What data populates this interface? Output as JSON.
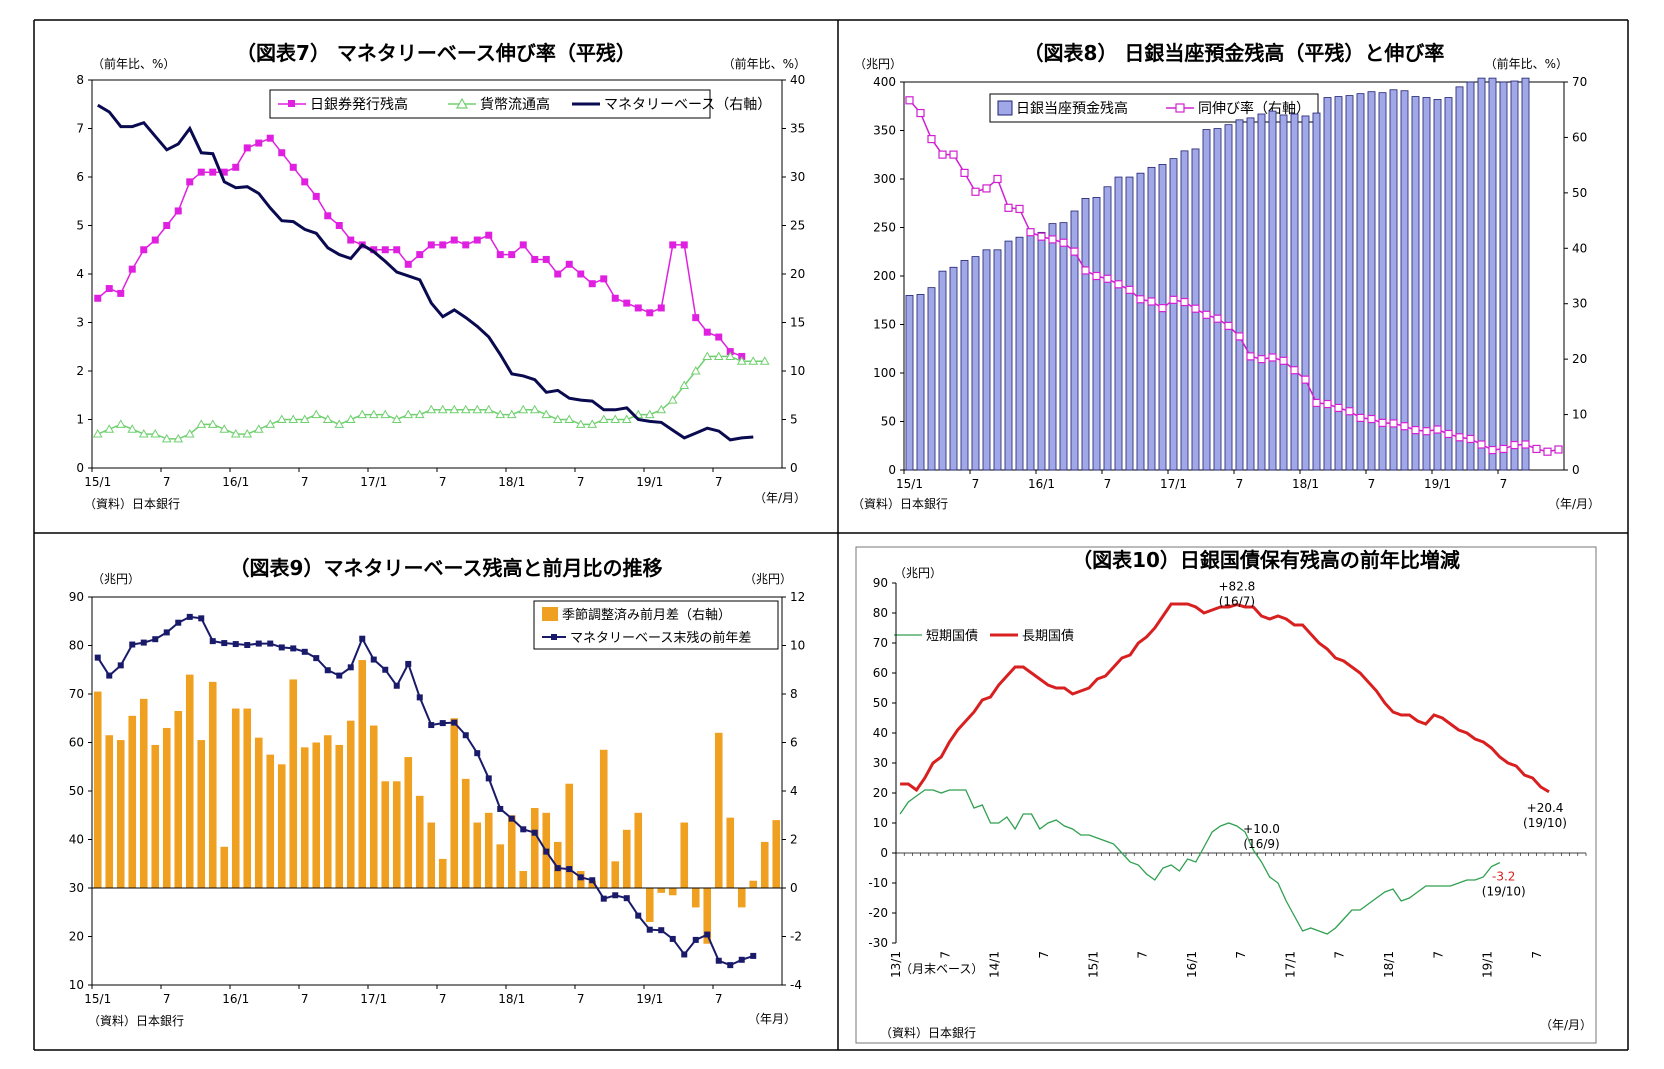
{
  "panels": [
    {
      "title": "（図表7） マネタリーベース伸び率（平残）",
      "unit_left": "（前年比、%）",
      "unit_right": "（前年比、%）",
      "source": "（資料）日本銀行",
      "xaxis_unit": "（年/月）",
      "legend": [
        "日銀券発行残高",
        "貨幣流通高",
        "マネタリーベース（右軸）"
      ]
    },
    {
      "title": "（図表8） 日銀当座預金残高（平残）と伸び率",
      "unit_left": "（兆円）",
      "unit_right": "（前年比、%）",
      "source": "（資料）日本銀行",
      "xaxis_unit": "（年/月）",
      "legend": [
        "日銀当座預金残高",
        "同伸び率（右軸）"
      ]
    },
    {
      "title": "（図表9）マネタリーベース残高と前月比の推移",
      "unit_left": "（兆円）",
      "unit_right": "（兆円）",
      "source": "（資料）日本銀行",
      "xaxis_unit": "（年月）",
      "legend": [
        "季節調整済み前月差（右軸）",
        "マネタリーベース末残の前年差"
      ]
    },
    {
      "title": "（図表10）日銀国債保有残高の前年比増減",
      "unit_left": "（兆円）",
      "source": "（資料）日本銀行",
      "xaxis_unit": "（年/月）",
      "note": "（月末ベース）",
      "legend": [
        "短期国債",
        "長期国債"
      ],
      "annotations": [
        {
          "line1": "+82.8",
          "line2": "(16/7)"
        },
        {
          "line1": "+10.0",
          "line2": "(16/9)"
        },
        {
          "line1": "+20.4",
          "line2": "(19/10)"
        },
        {
          "line1": "-3.2",
          "line2": "(19/10)"
        }
      ]
    }
  ],
  "chart_data": [
    {
      "type": "line",
      "title": "（図表7） マネタリーベース伸び率（平残）",
      "x_tick_labels": [
        "15/1",
        "7",
        "16/1",
        "7",
        "17/1",
        "7",
        "18/1",
        "7",
        "19/1",
        "7"
      ],
      "ylim": [
        0,
        8
      ],
      "y2lim": [
        0,
        40
      ],
      "y_ticks": [
        "0",
        "1",
        "2",
        "3",
        "4",
        "5",
        "6",
        "7",
        "8"
      ],
      "y2_ticks": [
        "0",
        "5",
        "10",
        "15",
        "20",
        "25",
        "30",
        "35",
        "40"
      ],
      "series": [
        {
          "name": "日銀券発行残高",
          "axis": "left",
          "color": "#e020e0",
          "values": [
            3.5,
            3.7,
            3.6,
            4.1,
            4.5,
            4.7,
            5.0,
            5.3,
            5.9,
            6.1,
            6.1,
            6.1,
            6.2,
            6.6,
            6.7,
            6.8,
            6.5,
            6.2,
            5.9,
            5.6,
            5.2,
            5.0,
            4.7,
            4.6,
            4.5,
            4.5,
            4.5,
            4.2,
            4.4,
            4.6,
            4.6,
            4.7,
            4.6,
            4.7,
            4.8,
            4.4,
            4.4,
            4.6,
            4.3,
            4.3,
            4.0,
            4.2,
            4.0,
            3.8,
            3.9,
            3.5,
            3.4,
            3.3,
            3.2,
            3.3,
            4.6,
            4.6,
            3.1,
            2.8,
            2.7,
            2.4,
            2.3
          ]
        },
        {
          "name": "貨幣流通高",
          "axis": "left",
          "color": "#70d070",
          "values": [
            0.7,
            0.8,
            0.9,
            0.8,
            0.7,
            0.7,
            0.6,
            0.6,
            0.7,
            0.9,
            0.9,
            0.8,
            0.7,
            0.7,
            0.8,
            0.9,
            1.0,
            1.0,
            1.0,
            1.1,
            1.0,
            0.9,
            1.0,
            1.1,
            1.1,
            1.1,
            1.0,
            1.1,
            1.1,
            1.2,
            1.2,
            1.2,
            1.2,
            1.2,
            1.2,
            1.1,
            1.1,
            1.2,
            1.2,
            1.1,
            1.0,
            1.0,
            0.9,
            0.9,
            1.0,
            1.0,
            1.0,
            1.1,
            1.1,
            1.2,
            1.4,
            1.7,
            2.0,
            2.3,
            2.3,
            2.3,
            2.2,
            2.2,
            2.2
          ]
        },
        {
          "name": "マネタリーベース（右軸）",
          "axis": "right",
          "color": "#0a0a50",
          "values": [
            37.4,
            36.7,
            35.2,
            35.2,
            35.6,
            34.2,
            32.8,
            33.4,
            35.0,
            32.5,
            32.4,
            29.5,
            28.9,
            29.0,
            28.3,
            26.8,
            25.5,
            25.4,
            24.6,
            24.2,
            22.7,
            22.0,
            21.6,
            23.0,
            22.3,
            21.3,
            20.2,
            19.8,
            19.4,
            17.0,
            15.6,
            16.3,
            15.5,
            14.6,
            13.5,
            11.7,
            9.7,
            9.5,
            9.1,
            7.8,
            8.0,
            7.2,
            7.0,
            6.9,
            6.0,
            6.0,
            6.2,
            5.0,
            4.8,
            4.7,
            3.9,
            3.1,
            3.6,
            4.1,
            3.8,
            2.9,
            3.1,
            3.2
          ]
        }
      ]
    },
    {
      "type": "bar",
      "title": "（図表8） 日銀当座預金残高（平残）と伸び率",
      "x_tick_labels": [
        "15/1",
        "7",
        "16/1",
        "7",
        "17/1",
        "7",
        "18/1",
        "7",
        "19/1",
        "7"
      ],
      "ylim": [
        0,
        400
      ],
      "y2lim": [
        0,
        70
      ],
      "y_ticks": [
        "0",
        "50",
        "100",
        "150",
        "200",
        "250",
        "300",
        "350",
        "400"
      ],
      "y2_ticks": [
        "0",
        "10",
        "20",
        "30",
        "40",
        "50",
        "60",
        "70"
      ],
      "series": [
        {
          "name": "日銀当座預金残高",
          "axis": "left",
          "type": "bar",
          "color": "#a0a8e8",
          "values": [
            180,
            181,
            188,
            205,
            209,
            216,
            220,
            227,
            227,
            236,
            240,
            246,
            245,
            254,
            255,
            267,
            280,
            281,
            292,
            302,
            302,
            306,
            312,
            315,
            321,
            329,
            331,
            351,
            352,
            356,
            361,
            363,
            367,
            370,
            366,
            367,
            365,
            368,
            384,
            385,
            386,
            388,
            390,
            389,
            392,
            391,
            385,
            384,
            382,
            384,
            395,
            400,
            404,
            404,
            400,
            401,
            404
          ]
        },
        {
          "name": "同伸び率（右軸）",
          "axis": "right",
          "type": "line",
          "color": "#d020d0",
          "values": [
            66.7,
            64.4,
            59.7,
            56.9,
            56.9,
            53.6,
            50.2,
            50.8,
            52.5,
            47.3,
            47.1,
            42.9,
            42.1,
            41.6,
            41.0,
            39.4,
            36.0,
            35.0,
            34.5,
            33.5,
            32.5,
            30.8,
            30.4,
            29.2,
            30.7,
            30.3,
            29.1,
            28.0,
            27.3,
            26.0,
            24.1,
            20.5,
            20.0,
            20.3,
            19.7,
            18.0,
            16.3,
            12.1,
            11.9,
            11.2,
            10.6,
            9.4,
            9.2,
            8.5,
            8.4,
            7.9,
            7.2,
            7.0,
            7.3,
            6.5,
            5.9,
            5.6,
            4.6,
            3.6,
            3.8,
            4.5,
            4.6,
            3.8,
            3.3,
            3.7
          ]
        }
      ]
    },
    {
      "type": "bar",
      "title": "（図表9）マネタリーベース残高と前月比の推移",
      "x_tick_labels": [
        "15/1",
        "7",
        "16/1",
        "7",
        "17/1",
        "7",
        "18/1",
        "7",
        "19/1",
        "7"
      ],
      "ylim": [
        10,
        90
      ],
      "y2lim": [
        -4,
        12
      ],
      "y_ticks": [
        "10",
        "20",
        "30",
        "40",
        "50",
        "60",
        "70",
        "80",
        "90"
      ],
      "y2_ticks": [
        "-4",
        "-2",
        "0",
        "2",
        "4",
        "6",
        "8",
        "10",
        "12"
      ],
      "series": [
        {
          "name": "季節調整済み前月差（右軸）",
          "axis": "right",
          "type": "bar",
          "color": "#f0a020",
          "values": [
            8.1,
            6.3,
            6.1,
            7.1,
            7.8,
            5.9,
            6.6,
            7.3,
            8.8,
            6.1,
            8.5,
            1.7,
            7.4,
            7.4,
            6.2,
            5.5,
            5.1,
            8.6,
            5.8,
            6.0,
            6.3,
            5.9,
            6.9,
            9.4,
            6.7,
            4.4,
            4.4,
            5.4,
            3.8,
            2.7,
            1.2,
            7.0,
            4.5,
            2.7,
            3.1,
            1.8,
            3.0,
            0.7,
            3.3,
            3.1,
            1.9,
            4.3,
            0.7,
            0.3,
            5.7,
            1.1,
            2.4,
            3.1,
            -1.4,
            -0.2,
            -0.3,
            2.7,
            -0.8,
            -2.3,
            6.4,
            2.9,
            -0.8,
            0.3,
            1.9,
            2.8
          ]
        },
        {
          "name": "マネタリーベース末残の前年差",
          "axis": "left",
          "type": "line",
          "color": "#1a1a6a",
          "values": [
            77.5,
            73.8,
            75.9,
            80.2,
            80.6,
            81.3,
            82.7,
            84.7,
            85.9,
            85.6,
            80.9,
            80.5,
            80.3,
            80.1,
            80.4,
            80.4,
            79.6,
            79.4,
            78.7,
            77.4,
            74.9,
            73.8,
            75.5,
            81.4,
            77.1,
            75.0,
            71.7,
            76.2,
            69.3,
            63.6,
            64.0,
            64.1,
            61.5,
            57.8,
            52.6,
            46.3,
            44.3,
            42.1,
            41.4,
            37.5,
            34.1,
            33.9,
            32.2,
            31.6,
            27.8,
            28.5,
            27.9,
            24.3,
            21.4,
            21.3,
            19.5,
            16.3,
            19.3,
            20.4,
            15.0,
            14.1,
            15.2,
            16.0
          ]
        }
      ]
    },
    {
      "type": "line",
      "title": "（図表10）日銀国債保有残高の前年比増減",
      "x_tick_labels": [
        "13/1",
        "7",
        "14/1",
        "7",
        "15/1",
        "7",
        "16/1",
        "7",
        "17/1",
        "7",
        "18/1",
        "7",
        "19/1",
        "7"
      ],
      "ylim": [
        -30,
        90
      ],
      "y_ticks": [
        "-30",
        "-20",
        "-10",
        "0",
        "10",
        "20",
        "30",
        "40",
        "50",
        "60",
        "70",
        "80",
        "90"
      ],
      "series": [
        {
          "name": "短期国債",
          "color": "#30a050",
          "values": [
            13,
            17,
            19,
            21,
            21,
            20,
            21,
            21,
            21,
            15,
            16,
            10,
            10,
            12,
            8,
            13,
            13,
            8,
            10,
            11,
            9,
            8,
            6,
            6,
            5,
            4,
            3,
            0,
            -3,
            -4,
            -7,
            -9,
            -5,
            -4,
            -6,
            -2,
            -3,
            2,
            7,
            9,
            10,
            9,
            7,
            1,
            -3,
            -8,
            -10,
            -16,
            -21,
            -26,
            -25,
            -26,
            -27,
            -25,
            -22,
            -19,
            -19,
            -17,
            -15,
            -13,
            -12,
            -16,
            -15,
            -13,
            -11,
            -11,
            -11,
            -11,
            -10,
            -9,
            -9,
            -8,
            -4.5,
            -3.2
          ]
        },
        {
          "name": "長期国債",
          "color": "#d82020",
          "values": [
            23,
            23,
            21,
            25,
            30,
            32,
            37,
            41,
            44,
            47,
            51,
            52,
            56,
            59,
            62,
            62,
            60,
            58,
            56,
            55,
            55,
            53,
            54,
            55,
            58,
            59,
            62,
            65,
            66,
            70,
            72,
            75,
            79,
            83,
            83,
            83,
            82,
            80,
            81,
            82,
            82,
            82.8,
            82,
            82,
            79,
            78,
            79,
            78,
            76,
            76,
            73,
            70,
            68,
            65,
            64,
            62,
            60,
            57,
            54,
            50,
            47,
            46,
            46,
            44,
            43,
            46,
            45,
            43,
            41,
            40,
            38,
            37,
            35,
            32,
            30,
            29,
            26,
            25,
            22,
            20.4
          ]
        }
      ]
    }
  ]
}
